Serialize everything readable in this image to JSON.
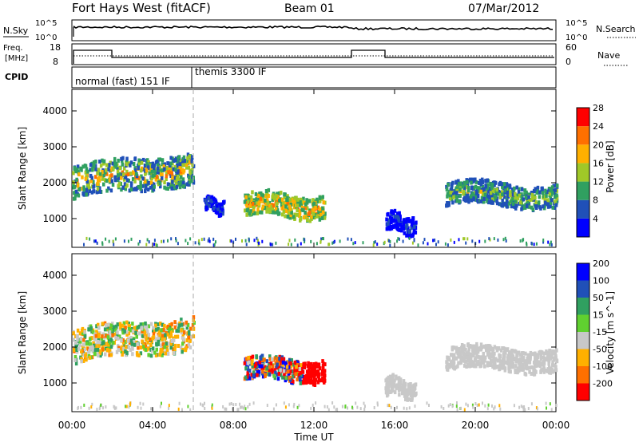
{
  "header": {
    "station": "Fort Hays West (fitACF)",
    "beam": "Beam 01",
    "date": "07/Mar/2012"
  },
  "panels": {
    "nsky": {
      "label": "N.Sky",
      "ticks": [
        "10^5",
        "10^0"
      ],
      "right_label": "N.Search",
      "right_ticks": [
        "10^5",
        "10^0"
      ]
    },
    "freq": {
      "label_line1": "Freq.",
      "label_line2": "[MHz]",
      "ticks": [
        "18",
        "8"
      ],
      "right_label": "Nave",
      "right_ticks": [
        "60",
        "0"
      ]
    },
    "cpid": {
      "label": "CPID",
      "modes": [
        "normal (fast) 151 IF",
        "themis 3300 IF"
      ]
    }
  },
  "chart_data": [
    {
      "type": "heatmap",
      "name": "power",
      "xlabel": "",
      "ylabel": "Slant Range [km]",
      "xlim": [
        "00:00",
        "24:00"
      ],
      "ylim": [
        200,
        4600
      ],
      "yticks": [
        1000,
        2000,
        3000,
        4000
      ],
      "grid": false,
      "colorbar": {
        "label": "Power [dB]",
        "ticks": [
          4,
          8,
          12,
          16,
          20,
          24,
          28
        ],
        "colors": [
          "#0000ff",
          "#2050b8",
          "#30a060",
          "#a0c828",
          "#ffb000",
          "#ff7000",
          "#ff0000"
        ]
      },
      "regions": [
        {
          "t0": 0.0,
          "t1": 6.0,
          "range_km": [
            1300,
            2600
          ],
          "level_db": [
            6,
            26
          ]
        },
        {
          "t0": 6.5,
          "t1": 7.5,
          "range_km": [
            1100,
            1600
          ],
          "level_db": [
            4,
            10
          ]
        },
        {
          "t0": 8.5,
          "t1": 12.5,
          "range_km": [
            900,
            1800
          ],
          "level_db": [
            10,
            28
          ]
        },
        {
          "t0": 15.5,
          "t1": 17.0,
          "range_km": [
            500,
            1200
          ],
          "level_db": [
            4,
            8
          ]
        },
        {
          "t0": 18.5,
          "t1": 24.0,
          "range_km": [
            1200,
            2100
          ],
          "level_db": [
            6,
            20
          ]
        }
      ]
    },
    {
      "type": "heatmap",
      "name": "velocity",
      "xlabel": "Time UT",
      "ylabel": "Slant Range [km]",
      "xlim": [
        "00:00",
        "24:00"
      ],
      "xticks": [
        "00:00",
        "04:00",
        "08:00",
        "12:00",
        "16:00",
        "20:00",
        "00:00"
      ],
      "ylim": [
        200,
        4600
      ],
      "yticks": [
        1000,
        2000,
        3000,
        4000
      ],
      "grid": false,
      "colorbar": {
        "label": "Velocity [m s^-1]",
        "ticks": [
          200,
          100,
          50,
          15,
          -15,
          -50,
          -100,
          -200
        ],
        "colors": [
          "#0000ff",
          "#2050b8",
          "#30a060",
          "#60d030",
          "#c8c8c8",
          "#ffb000",
          "#ff7000",
          "#ff0000"
        ]
      },
      "regions": [
        {
          "t0": 0.0,
          "t1": 6.0,
          "range_km": [
            1300,
            2600
          ],
          "velocity_ms": [
            -60,
            60
          ]
        },
        {
          "t0": 8.5,
          "t1": 12.5,
          "range_km": [
            900,
            1800
          ],
          "velocity_ms": [
            -200,
            200
          ]
        },
        {
          "t0": 15.5,
          "t1": 17.0,
          "range_km": [
            500,
            1200
          ],
          "velocity_ms": [
            -15,
            15
          ]
        },
        {
          "t0": 18.5,
          "t1": 24.0,
          "range_km": [
            1200,
            2100
          ],
          "velocity_ms": [
            -15,
            15
          ]
        }
      ]
    }
  ]
}
